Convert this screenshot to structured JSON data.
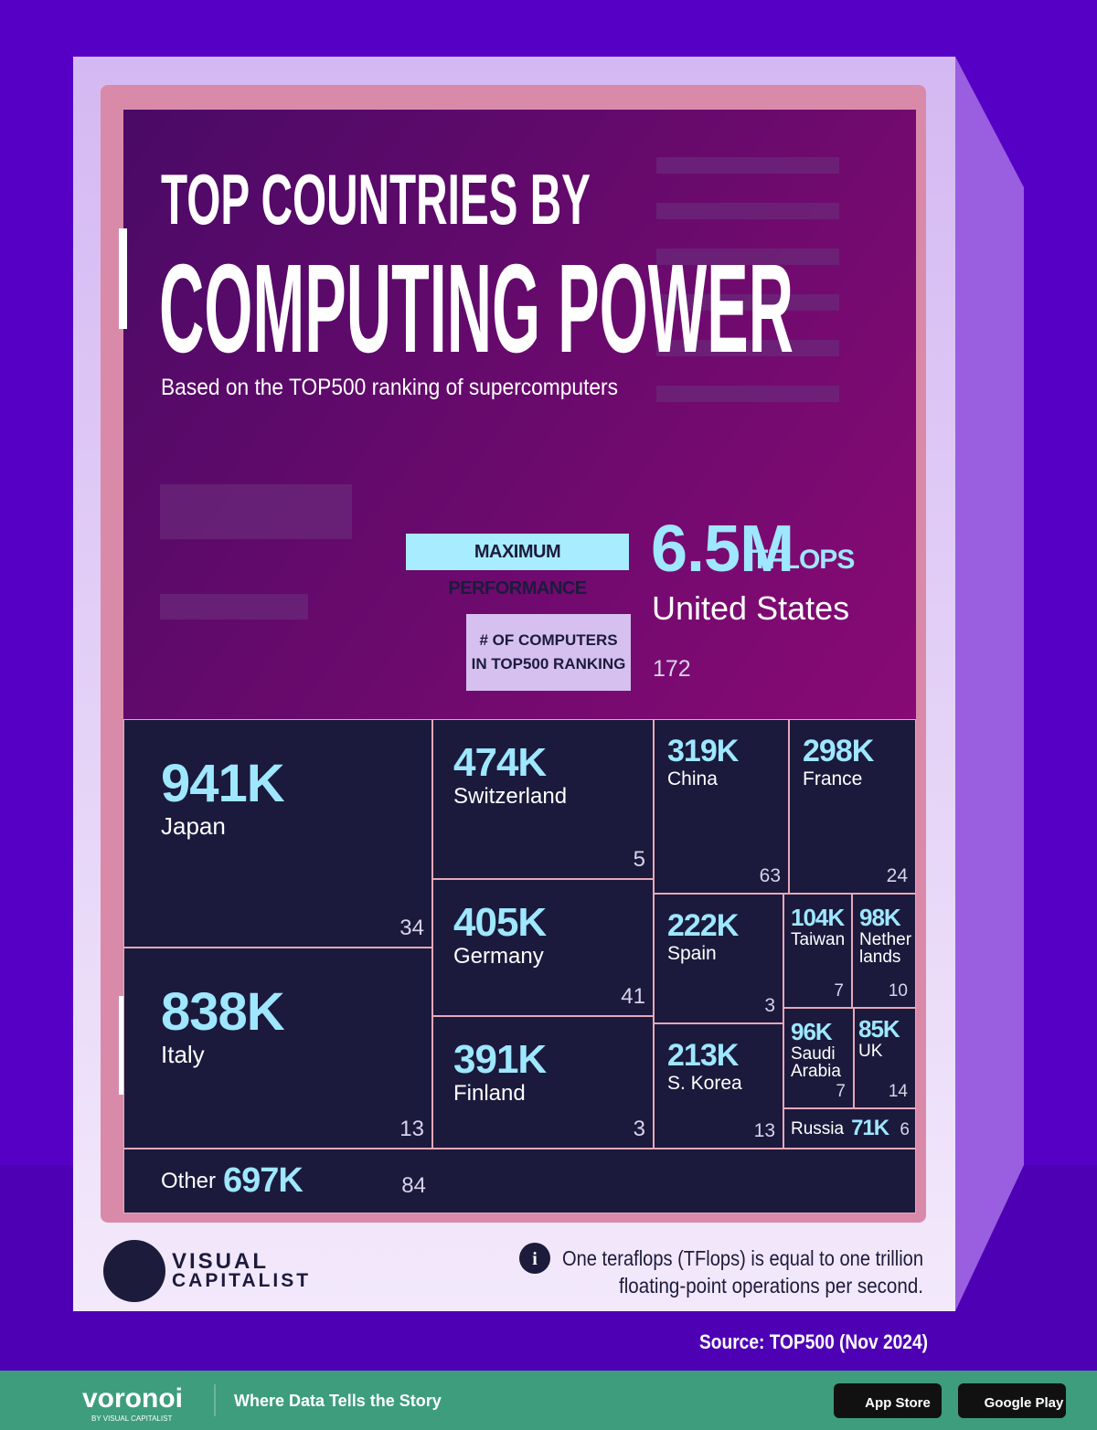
{
  "chart_data": {
    "type": "treemap",
    "title_line1": "TOP COUNTRIES BY",
    "title_line2": "COMPUTING POWER",
    "subtitle": "Based on the TOP500 ranking of supercomputers",
    "value_annotation": "MAXIMUM PERFORMANCE",
    "unit": "TFLOPS",
    "count_annotation_line1": "# OF COMPUTERS",
    "count_annotation_line2": "IN TOP500 RANKING",
    "categories": [
      "United States",
      "Japan",
      "Italy",
      "Other",
      "Switzerland",
      "Germany",
      "Finland",
      "China",
      "France",
      "Spain",
      "S. Korea",
      "Taiwan",
      "Netherlands",
      "Saudi Arabia",
      "UK",
      "Russia"
    ],
    "values": [
      6500000,
      941000,
      838000,
      697000,
      474000,
      405000,
      391000,
      319000,
      298000,
      222000,
      213000,
      104000,
      98000,
      96000,
      85000,
      71000
    ],
    "value_labels": [
      "6.5M",
      "941K",
      "838K",
      "697K",
      "474K",
      "405K",
      "391K",
      "319K",
      "298K",
      "222K",
      "213K",
      "104K",
      "98K",
      "96K",
      "85K",
      "71K"
    ],
    "counts": [
      172,
      34,
      13,
      84,
      5,
      41,
      3,
      63,
      24,
      3,
      13,
      7,
      10,
      7,
      14,
      6
    ],
    "note_line1": "One teraflops (TFlops) is equal to one trillion",
    "note_line2": "floating-point operations per second.",
    "source": "Source: TOP500 (Nov 2024)"
  },
  "brand": {
    "line1": "VISUAL",
    "line2": "CAPITALIST"
  },
  "footer": {
    "brand": "voronoi",
    "sub": "BY VISUAL CAPITALIST",
    "tagline": "Where Data Tells the Story",
    "app_store": "App Store",
    "google_play": "Google Play"
  }
}
